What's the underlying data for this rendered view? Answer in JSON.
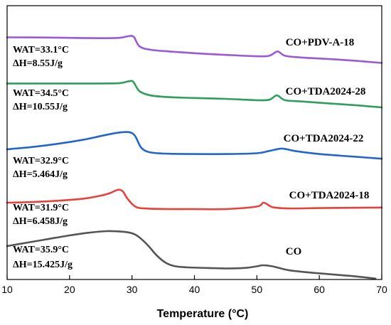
{
  "chart_data": {
    "type": "line",
    "title": "",
    "xlabel": "Temperature (°C)",
    "ylabel": "",
    "xlim": [
      10,
      70
    ],
    "xticks": [
      10,
      20,
      30,
      40,
      50,
      60,
      70
    ],
    "grid": false,
    "legend": "none",
    "series": [
      {
        "name": "CO+PDV-A-18",
        "color": "#9b59d6",
        "wat": "WAT=33.1°C",
        "dh": "ΔH=8.55J/g",
        "x": [
          10,
          15,
          20,
          25,
          28,
          29.5,
          30.3,
          31.2,
          33,
          36,
          40,
          45,
          50,
          52,
          53.3,
          54.5,
          57,
          62,
          66,
          70
        ],
        "y": [
          -0.02,
          -0.03,
          -0.05,
          -0.07,
          -0.05,
          0.05,
          0.0,
          -0.55,
          -0.75,
          -0.85,
          -0.95,
          -1.05,
          -1.13,
          -1.1,
          -0.85,
          -1.1,
          -1.2,
          -1.3,
          -1.4,
          -1.52
        ]
      },
      {
        "name": "CO+TDA2024-28",
        "color": "#2e9e5a",
        "wat": "WAT=34.5°C",
        "dh": "ΔH=10.55J/g",
        "x": [
          10,
          15,
          20,
          25,
          28,
          29.5,
          30.2,
          31.2,
          33,
          36,
          40,
          45,
          50,
          52,
          53.2,
          54.5,
          57,
          62,
          66,
          70
        ],
        "y": [
          -0.1,
          -0.1,
          -0.1,
          -0.1,
          -0.08,
          0.03,
          0.0,
          -0.55,
          -0.8,
          -0.9,
          -0.95,
          -1.0,
          -1.08,
          -1.05,
          -0.8,
          -1.08,
          -1.15,
          -1.28,
          -1.38,
          -1.5
        ]
      },
      {
        "name": "CO+TDA2024-22",
        "color": "#2266cc",
        "wat": "WAT=32.9°C",
        "dh": "ΔH=5.464J/g",
        "x": [
          10,
          14,
          18,
          22,
          25,
          27.5,
          29.5,
          30.5,
          31.5,
          33,
          36,
          40,
          45,
          50,
          52,
          54,
          56,
          60,
          65,
          70
        ],
        "y": [
          0.0,
          0.15,
          0.35,
          0.6,
          0.85,
          1.05,
          1.1,
          0.85,
          0.1,
          -0.2,
          -0.28,
          -0.3,
          -0.3,
          -0.25,
          -0.1,
          0.05,
          -0.1,
          -0.3,
          -0.45,
          -0.6
        ]
      },
      {
        "name": "CO+TDA2024-18",
        "color": "#e8413c",
        "wat": "WAT=31.9°C",
        "dh": "ΔH=6.458J/g",
        "x": [
          10,
          14,
          18,
          22,
          25,
          26.5,
          27.7,
          28.5,
          29.3,
          30.5,
          32,
          36,
          40,
          45,
          50,
          51.1,
          52.5,
          55,
          60,
          65,
          70
        ],
        "y": [
          0.0,
          0.05,
          0.15,
          0.3,
          0.55,
          0.75,
          1.0,
          0.9,
          0.3,
          -0.3,
          -0.45,
          -0.5,
          -0.5,
          -0.5,
          -0.3,
          0.0,
          -0.35,
          -0.45,
          -0.42,
          -0.4,
          -0.38
        ]
      },
      {
        "name": "CO",
        "color": "#555555",
        "wat": "WAT=35.9°C",
        "dh": "ΔH=15.425J/g",
        "x": [
          10,
          13,
          16,
          20,
          23,
          26,
          28.5,
          30,
          31,
          32.5,
          34,
          35.5,
          37,
          39,
          42,
          45,
          48,
          50,
          51,
          52.5,
          55,
          58,
          62,
          66,
          69
        ],
        "y": [
          0.0,
          0.3,
          0.6,
          1.0,
          1.25,
          1.4,
          1.35,
          1.2,
          0.9,
          0.1,
          -0.9,
          -1.6,
          -1.9,
          -2.0,
          -2.05,
          -2.1,
          -2.05,
          -1.9,
          -1.8,
          -1.9,
          -2.25,
          -2.45,
          -2.65,
          -2.85,
          -3.05
        ]
      }
    ]
  }
}
